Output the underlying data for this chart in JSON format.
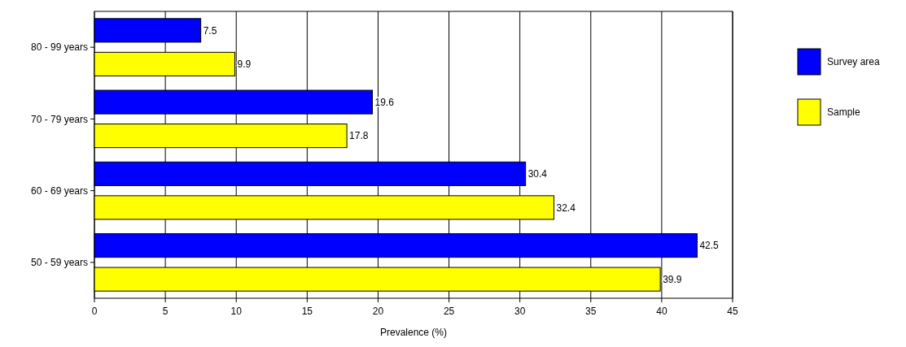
{
  "chart_data": {
    "type": "bar",
    "orientation": "horizontal",
    "xlabel": "Prevalence (%)",
    "categories": [
      "80 - 99 years",
      "70 - 79 years",
      "60 - 69 years",
      "50 - 59 years"
    ],
    "series": [
      {
        "name": "Survey area",
        "color": "#0000ff",
        "values": [
          7.5,
          19.6,
          30.4,
          42.5
        ]
      },
      {
        "name": "Sample",
        "color": "#ffff00",
        "values": [
          9.9,
          17.8,
          32.4,
          39.9
        ]
      }
    ],
    "xlim": [
      0,
      45
    ],
    "xticks": [
      0,
      5,
      10,
      15,
      20,
      25,
      30,
      35,
      40,
      45
    ],
    "grid": "x",
    "legend": "right",
    "data_labels": true
  }
}
